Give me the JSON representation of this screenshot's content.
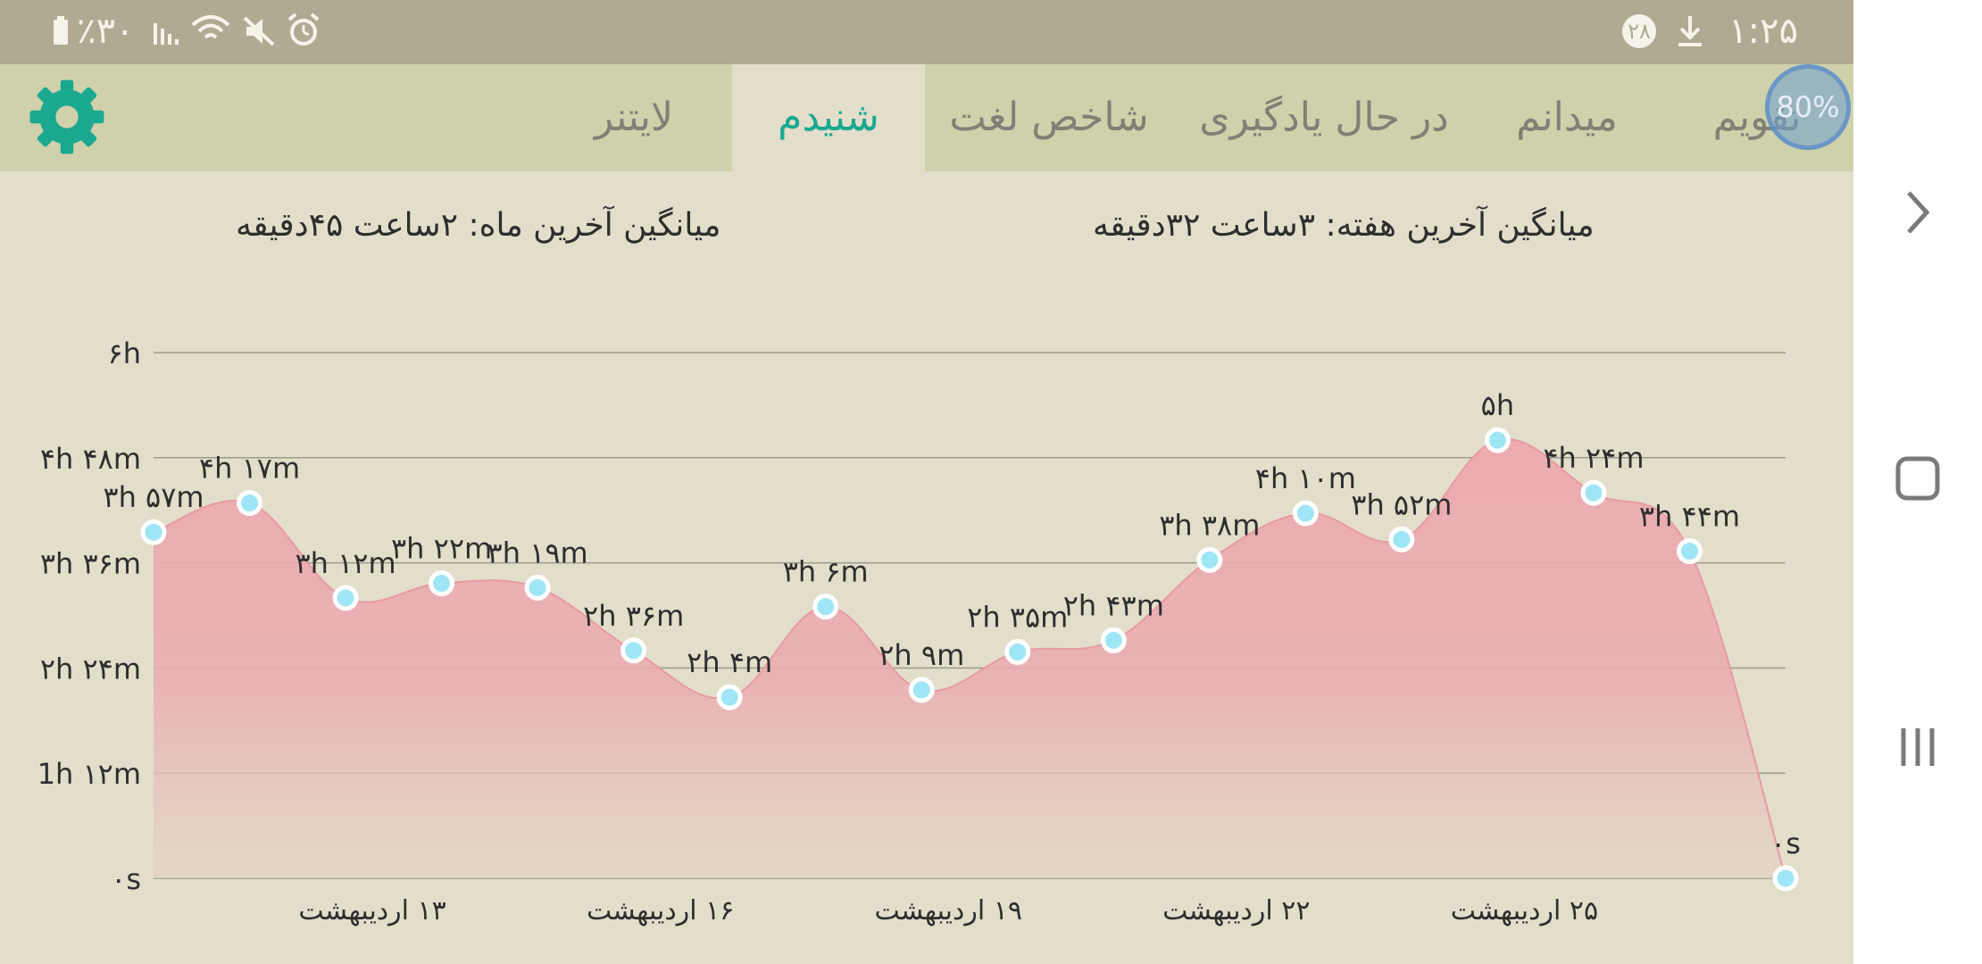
{
  "status_bar": {
    "left": "۱:۲۵",
    "badge": "۲۸",
    "battery": "٪۳۰"
  },
  "overlay": {
    "label": "80%"
  },
  "tabs": [
    {
      "label": "تقویم",
      "active": false
    },
    {
      "label": "میدانم",
      "active": false
    },
    {
      "label": "در حال یادگیری",
      "active": false
    },
    {
      "label": "شاخص لغت",
      "active": false
    },
    {
      "label": "شنیدم",
      "active": true
    },
    {
      "label": "لایتنر",
      "active": false
    }
  ],
  "averages": {
    "week": "میانگین آخرین هفته: ۳ساعت  ۳۲دقیقه",
    "month": "میانگین آخرین ماه: ۲ساعت  ۴۵دقیقه"
  },
  "colors": {
    "accent": "#1aa890",
    "area_fill": "#eca9b0",
    "point": "#9ee6f5"
  },
  "chart_data": {
    "type": "area",
    "y_unit": "minutes",
    "ylim": [
      0,
      360
    ],
    "y_ticks": [
      {
        "value": 0,
        "label": "۰s"
      },
      {
        "value": 72,
        "label": "1h ۱۲m"
      },
      {
        "value": 144,
        "label": "۲h ۲۴m"
      },
      {
        "value": 216,
        "label": "۳h ۳۶m"
      },
      {
        "value": 288,
        "label": "۴h ۴۸m"
      },
      {
        "value": 360,
        "label": "۶h"
      }
    ],
    "x_ticks": [
      {
        "index": 2,
        "label": "۱۳ اردیبهشت"
      },
      {
        "index": 5,
        "label": "۱۶ اردیبهشت"
      },
      {
        "index": 8,
        "label": "۱۹ اردیبهشت"
      },
      {
        "index": 11,
        "label": "۲۲ اردیبهشت"
      },
      {
        "index": 14,
        "label": "۲۵ اردیبهشت"
      }
    ],
    "points": [
      {
        "value": 237,
        "label": "۳h ۵۷m"
      },
      {
        "value": 257,
        "label": "۴h ۱۷m"
      },
      {
        "value": 192,
        "label": "۳h ۱۲m"
      },
      {
        "value": 202,
        "label": "۳h ۲۲m"
      },
      {
        "value": 199,
        "label": "۳h ۱۹m"
      },
      {
        "value": 156,
        "label": "۲h ۳۶m"
      },
      {
        "value": 124,
        "label": "۲h ۴m"
      },
      {
        "value": 186,
        "label": "۳h ۶m"
      },
      {
        "value": 129,
        "label": "۲h ۹m"
      },
      {
        "value": 155,
        "label": "۲h ۳۵m"
      },
      {
        "value": 163,
        "label": "۲h ۴۳m"
      },
      {
        "value": 218,
        "label": "۳h ۳۸m"
      },
      {
        "value": 250,
        "label": "۴h ۱۰m"
      },
      {
        "value": 232,
        "label": "۳h ۵۲m"
      },
      {
        "value": 300,
        "label": "۵h"
      },
      {
        "value": 264,
        "label": "۴h ۲۴m"
      },
      {
        "value": 224,
        "label": "۳h ۴۴m"
      },
      {
        "value": 0,
        "label": "۰s"
      }
    ]
  }
}
